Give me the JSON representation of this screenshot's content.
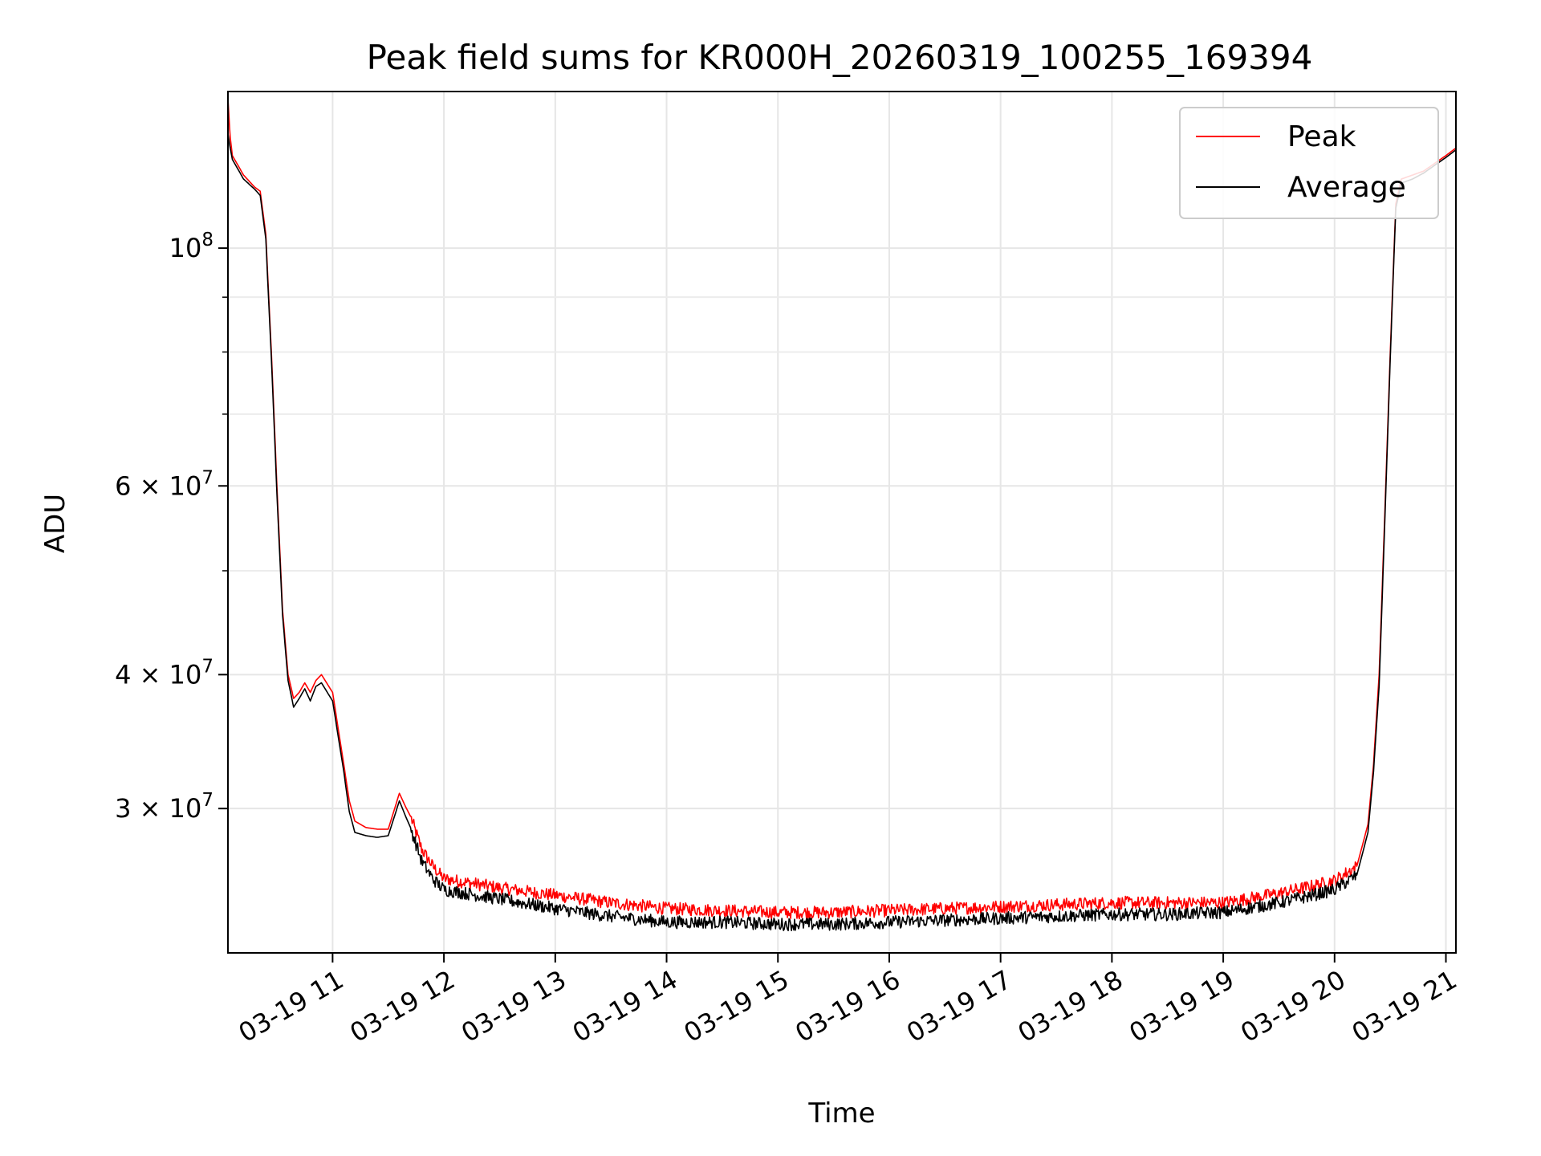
{
  "chart_data": {
    "type": "line",
    "title": "Peak field sums for KR000H_20260319_100255_169394",
    "xlabel": "Time",
    "ylabel": "ADU",
    "y_scale": "log",
    "ylim": [
      22000000,
      140000000
    ],
    "xlim": [
      10.06,
      21.09
    ],
    "x_unit": "hour of 2026-03-19",
    "x_ticks": [
      {
        "value": 11,
        "label": "03-19 11"
      },
      {
        "value": 12,
        "label": "03-19 12"
      },
      {
        "value": 13,
        "label": "03-19 13"
      },
      {
        "value": 14,
        "label": "03-19 14"
      },
      {
        "value": 15,
        "label": "03-19 15"
      },
      {
        "value": 16,
        "label": "03-19 16"
      },
      {
        "value": 17,
        "label": "03-19 17"
      },
      {
        "value": 18,
        "label": "03-19 18"
      },
      {
        "value": 19,
        "label": "03-19 19"
      },
      {
        "value": 20,
        "label": "03-19 20"
      },
      {
        "value": 21,
        "label": "03-19 21"
      }
    ],
    "y_ticks": [
      {
        "value": 30000000,
        "label": "3 × 10",
        "exp": "7"
      },
      {
        "value": 40000000,
        "label": "4 × 10",
        "exp": "7"
      },
      {
        "value": 60000000,
        "label": "6 × 10",
        "exp": "7"
      },
      {
        "value": 100000000,
        "label": "10",
        "exp": "8"
      }
    ],
    "y_minor_ticks": [
      50000000,
      70000000,
      80000000,
      90000000
    ],
    "grid": true,
    "legend_position": "top-right",
    "series": [
      {
        "name": "Peak",
        "color": "#ff0000",
        "x": [
          10.06,
          10.08,
          10.1,
          10.2,
          10.3,
          10.35,
          10.4,
          10.45,
          10.5,
          10.55,
          10.6,
          10.65,
          10.7,
          10.75,
          10.8,
          10.85,
          10.9,
          11.0,
          11.1,
          11.15,
          11.2,
          11.3,
          11.4,
          11.5,
          11.6,
          11.65,
          11.7,
          11.8,
          11.9,
          12.0,
          12.5,
          13.0,
          13.5,
          14.0,
          14.5,
          15.0,
          15.5,
          16.0,
          16.5,
          17.0,
          17.5,
          18.0,
          18.5,
          19.0,
          19.5,
          19.8,
          20.0,
          20.2,
          20.3,
          20.35,
          20.4,
          20.45,
          20.5,
          20.55,
          20.6,
          20.7,
          20.8,
          20.9,
          21.0,
          21.09
        ],
        "y": [
          138000000,
          127000000,
          122000000,
          117000000,
          114000000,
          113000000,
          103000000,
          80000000,
          60000000,
          46000000,
          40000000,
          38000000,
          38500000,
          39300000,
          38500000,
          39500000,
          40000000,
          38500000,
          33000000,
          30500000,
          29200000,
          28800000,
          28700000,
          28700000,
          31000000,
          30200000,
          29500000,
          27500000,
          26500000,
          25800000,
          25300000,
          24900000,
          24500000,
          24200000,
          24100000,
          24000000,
          24000000,
          24100000,
          24200000,
          24300000,
          24400000,
          24500000,
          24500000,
          24500000,
          25000000,
          25400000,
          25700000,
          26500000,
          29000000,
          33000000,
          40000000,
          56000000,
          80000000,
          110000000,
          116000000,
          117000000,
          118000000,
          120000000,
          122000000,
          124000000
        ]
      },
      {
        "name": "Average",
        "color": "#000000",
        "x": [
          10.06,
          10.08,
          10.1,
          10.2,
          10.3,
          10.35,
          10.4,
          10.45,
          10.5,
          10.55,
          10.6,
          10.65,
          10.7,
          10.75,
          10.8,
          10.85,
          10.9,
          11.0,
          11.1,
          11.15,
          11.2,
          11.3,
          11.4,
          11.5,
          11.6,
          11.65,
          11.7,
          11.8,
          11.9,
          12.0,
          12.5,
          13.0,
          13.5,
          14.0,
          14.5,
          15.0,
          15.5,
          16.0,
          16.5,
          17.0,
          17.5,
          18.0,
          18.5,
          19.0,
          19.5,
          19.8,
          20.0,
          20.2,
          20.3,
          20.35,
          20.4,
          20.45,
          20.5,
          20.55,
          20.6,
          20.7,
          20.8,
          20.9,
          21.0,
          21.09
        ],
        "y": [
          128000000,
          124000000,
          121000000,
          116000000,
          113500000,
          112000000,
          102000000,
          79000000,
          59000000,
          45500000,
          39500000,
          37300000,
          38000000,
          38800000,
          37800000,
          39000000,
          39300000,
          37800000,
          32500000,
          29800000,
          28500000,
          28300000,
          28200000,
          28300000,
          30500000,
          29600000,
          28800000,
          26800000,
          25800000,
          25200000,
          24700000,
          24200000,
          23800000,
          23500000,
          23500000,
          23400000,
          23400000,
          23500000,
          23600000,
          23700000,
          23800000,
          23900000,
          23900000,
          24000000,
          24500000,
          24900000,
          25200000,
          26000000,
          28500000,
          32500000,
          39000000,
          55000000,
          79000000,
          109000000,
          115000000,
          116000000,
          117500000,
          119500000,
          121500000,
          123500000
        ]
      }
    ]
  }
}
